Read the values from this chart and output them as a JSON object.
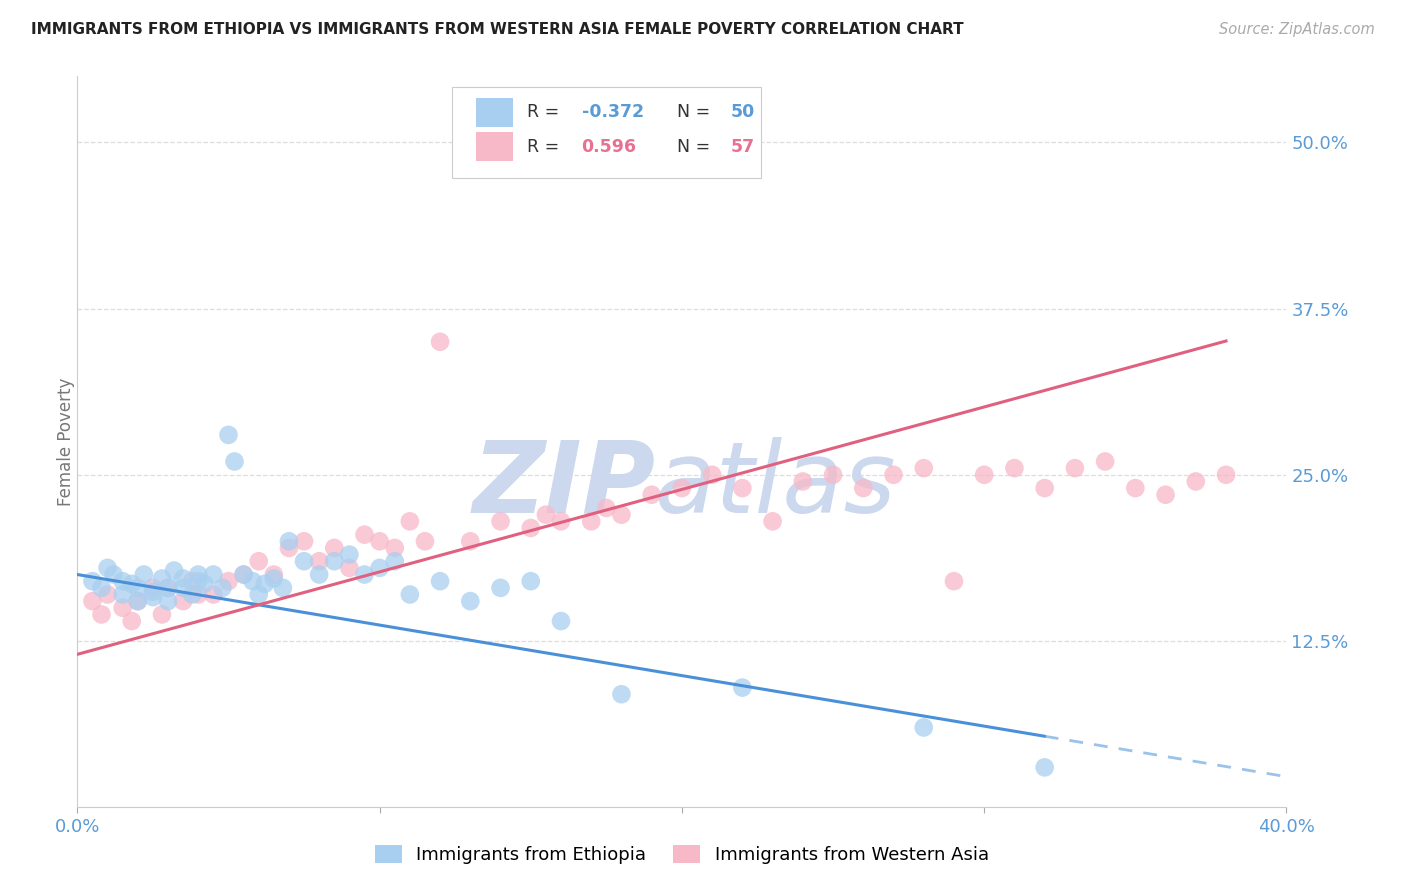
{
  "title": "IMMIGRANTS FROM ETHIOPIA VS IMMIGRANTS FROM WESTERN ASIA FEMALE POVERTY CORRELATION CHART",
  "source": "Source: ZipAtlas.com",
  "ylabel": "Female Poverty",
  "ytick_labels": [
    "12.5%",
    "25.0%",
    "37.5%",
    "50.0%"
  ],
  "ytick_values": [
    0.125,
    0.25,
    0.375,
    0.5
  ],
  "xlim": [
    0.0,
    0.4
  ],
  "ylim": [
    0.0,
    0.55
  ],
  "legend1_label": "Immigrants from Ethiopia",
  "legend2_label": "Immigrants from Western Asia",
  "R1": -0.372,
  "N1": 50,
  "R2": 0.596,
  "N2": 57,
  "color_blue": "#A8CFF0",
  "color_pink": "#F7B8C8",
  "color_blue_line": "#4A90D9",
  "color_pink_line": "#E06080",
  "color_blue_text": "#5B9BD5",
  "color_pink_text": "#E87090",
  "watermark_zip_color": "#C8D5EC",
  "watermark_atlas_color": "#C8D5EC",
  "background_color": "#FFFFFF",
  "grid_color": "#DDDDDD",
  "eth_line_intercept": 0.175,
  "eth_line_slope": -0.38,
  "west_line_intercept": 0.115,
  "west_line_slope": 0.62
}
